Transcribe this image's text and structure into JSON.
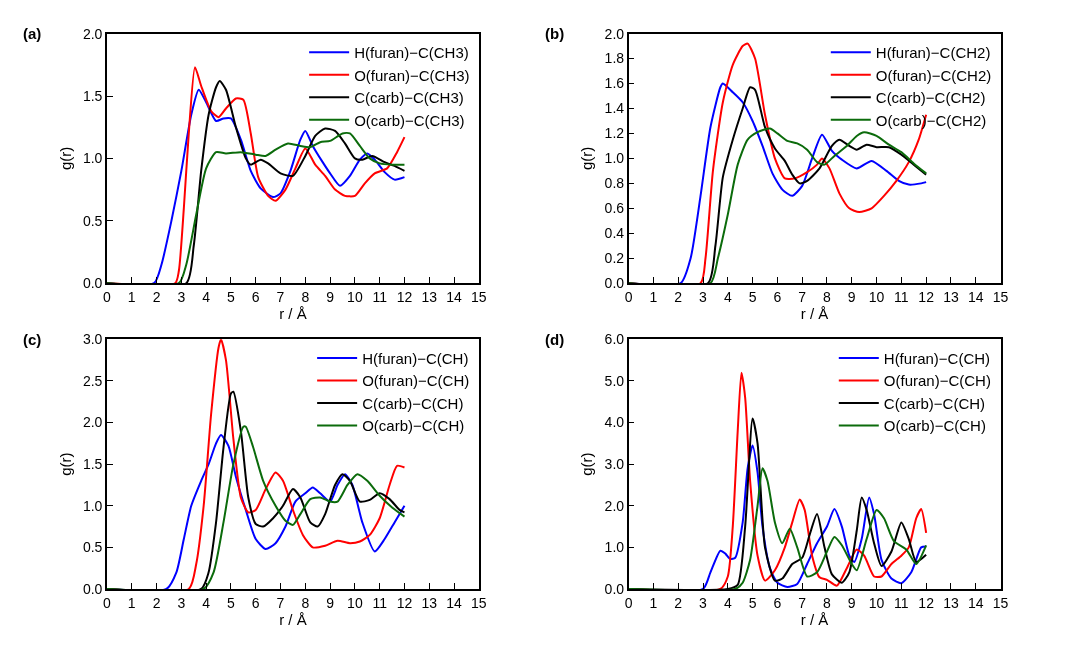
{
  "chart_data": [
    {
      "type": "line",
      "title": "(a)",
      "xlabel": "r / Å",
      "ylabel": "g(r)",
      "xlim": [
        0,
        15
      ],
      "xticks": [
        0,
        1,
        2,
        3,
        4,
        5,
        6,
        7,
        8,
        9,
        10,
        11,
        12,
        13,
        14,
        15
      ],
      "ylim": [
        0,
        2
      ],
      "yticks": [
        {
          "value": 0,
          "label": "0.0"
        },
        {
          "value": 0.5,
          "label": "0.5"
        },
        {
          "value": 1,
          "label": "1.0"
        },
        {
          "value": 1.5,
          "label": "1.5"
        },
        {
          "value": 2,
          "label": "2.0"
        }
      ],
      "legend": "top right",
      "series": [
        {
          "name": "H(furan)−C(CH3)",
          "color": "#0000ff",
          "x": [
            0,
            1.9,
            2.2,
            2.6,
            3.0,
            3.4,
            3.7,
            4.0,
            4.4,
            4.7,
            5.0,
            5.4,
            5.8,
            6.2,
            6.7,
            7.0,
            7.4,
            7.8,
            8.0,
            8.3,
            8.7,
            9.0,
            9.4,
            9.8,
            10.2,
            10.5,
            10.8,
            11.2,
            11.6,
            12.0
          ],
          "values": [
            0,
            0,
            0.15,
            0.5,
            0.9,
            1.35,
            1.55,
            1.45,
            1.3,
            1.32,
            1.32,
            1.15,
            0.9,
            0.76,
            0.69,
            0.72,
            0.9,
            1.15,
            1.22,
            1.1,
            0.97,
            0.88,
            0.78,
            0.86,
            0.99,
            1.04,
            0.99,
            0.89,
            0.83,
            0.85
          ]
        },
        {
          "name": "O(furan)−C(CH3)",
          "color": "#ff0000",
          "x": [
            0,
            2.75,
            2.9,
            3.1,
            3.3,
            3.55,
            3.8,
            4.2,
            4.5,
            4.8,
            5.2,
            5.5,
            5.8,
            6.1,
            6.5,
            6.8,
            7.2,
            7.6,
            8.0,
            8.4,
            8.8,
            9.2,
            9.6,
            10.0,
            10.4,
            10.8,
            11.3,
            11.7,
            12.0
          ],
          "values": [
            0,
            0,
            0.1,
            0.6,
            1.2,
            1.73,
            1.58,
            1.38,
            1.33,
            1.4,
            1.48,
            1.47,
            1.2,
            0.85,
            0.7,
            0.66,
            0.75,
            0.92,
            1.08,
            0.95,
            0.86,
            0.75,
            0.7,
            0.7,
            0.8,
            0.88,
            0.92,
            1.05,
            1.17
          ]
        },
        {
          "name": "C(carb)−C(CH3)",
          "color": "#000000",
          "x": [
            0,
            3.2,
            3.5,
            3.8,
            4.1,
            4.4,
            4.55,
            4.8,
            5.2,
            5.6,
            5.8,
            6.2,
            6.5,
            7.0,
            7.5,
            8.0,
            8.4,
            8.8,
            9.2,
            9.6,
            10.0,
            10.3,
            10.7,
            11.2,
            11.6,
            12.0
          ],
          "values": [
            0,
            0,
            0.3,
            0.9,
            1.35,
            1.57,
            1.62,
            1.55,
            1.25,
            1.0,
            0.95,
            0.99,
            0.96,
            0.88,
            0.86,
            1.02,
            1.18,
            1.24,
            1.22,
            1.12,
            1.0,
            0.99,
            1.02,
            0.97,
            0.94,
            0.9
          ]
        },
        {
          "name": "O(carb)−C(CH3)",
          "color": "#0b6b0b",
          "x": [
            0,
            2.9,
            3.2,
            3.6,
            4.0,
            4.4,
            4.8,
            5.4,
            6.0,
            6.4,
            6.8,
            7.3,
            7.8,
            8.2,
            8.6,
            9.0,
            9.5,
            9.8,
            10.2,
            10.6,
            11.0,
            11.5,
            12.0
          ],
          "values": [
            0,
            0,
            0.15,
            0.55,
            0.92,
            1.05,
            1.04,
            1.05,
            1.03,
            1.02,
            1.07,
            1.12,
            1.1,
            1.09,
            1.13,
            1.14,
            1.2,
            1.2,
            1.1,
            1.0,
            0.96,
            0.95,
            0.95
          ]
        }
      ]
    },
    {
      "type": "line",
      "title": "(b)",
      "xlabel": "r / Å",
      "ylabel": "g(r)",
      "xlim": [
        0,
        15
      ],
      "xticks": [
        0,
        1,
        2,
        3,
        4,
        5,
        6,
        7,
        8,
        9,
        10,
        11,
        12,
        13,
        14,
        15
      ],
      "ylim": [
        0,
        2
      ],
      "yticks": [
        {
          "value": 0,
          "label": "0.0"
        },
        {
          "value": 0.2,
          "label": "0.2"
        },
        {
          "value": 0.4,
          "label": "0.4"
        },
        {
          "value": 0.6,
          "label": "0.6"
        },
        {
          "value": 0.8,
          "label": "0.8"
        },
        {
          "value": 1,
          "label": "1.0"
        },
        {
          "value": 1.2,
          "label": "1.2"
        },
        {
          "value": 1.4,
          "label": "1.4"
        },
        {
          "value": 1.6,
          "label": "1.6"
        },
        {
          "value": 1.8,
          "label": "1.8"
        },
        {
          "value": 2,
          "label": "2.0"
        }
      ],
      "legend": "top right",
      "series": [
        {
          "name": "H(furan)−C(CH2)",
          "color": "#0000ff",
          "x": [
            0,
            2.1,
            2.5,
            2.9,
            3.3,
            3.7,
            3.8,
            4.2,
            4.6,
            5.0,
            5.4,
            5.8,
            6.2,
            6.6,
            7.0,
            7.4,
            7.8,
            8.2,
            8.6,
            9.2,
            9.8,
            10.4,
            10.9,
            11.3,
            11.8,
            12.0
          ],
          "values": [
            0,
            0,
            0.2,
            0.7,
            1.25,
            1.57,
            1.6,
            1.53,
            1.45,
            1.3,
            1.1,
            0.88,
            0.75,
            0.7,
            0.78,
            1.0,
            1.19,
            1.06,
            0.99,
            0.92,
            0.98,
            0.9,
            0.82,
            0.79,
            0.8,
            0.81
          ]
        },
        {
          "name": "O(furan)−C(CH2)",
          "color": "#ff0000",
          "x": [
            0,
            2.9,
            3.1,
            3.4,
            3.8,
            4.2,
            4.6,
            4.8,
            5.1,
            5.5,
            5.9,
            6.3,
            6.7,
            7.2,
            7.6,
            7.8,
            8.1,
            8.5,
            8.9,
            9.3,
            9.8,
            10.3,
            10.8,
            11.3,
            11.7,
            12.0
          ],
          "values": [
            0,
            0,
            0.2,
            0.9,
            1.45,
            1.75,
            1.9,
            1.92,
            1.8,
            1.35,
            1.0,
            0.84,
            0.84,
            0.89,
            0.95,
            1.0,
            0.92,
            0.72,
            0.6,
            0.57,
            0.6,
            0.7,
            0.82,
            0.97,
            1.15,
            1.35
          ]
        },
        {
          "name": "C(carb)−C(CH2)",
          "color": "#000000",
          "x": [
            0,
            3.2,
            3.5,
            3.8,
            4.2,
            4.6,
            4.9,
            5.1,
            5.5,
            5.9,
            6.3,
            6.6,
            6.9,
            7.2,
            7.7,
            8.2,
            8.5,
            8.9,
            9.2,
            9.6,
            10.0,
            10.5,
            11.0,
            11.5,
            12.0
          ],
          "values": [
            0,
            0,
            0.3,
            0.85,
            1.15,
            1.4,
            1.57,
            1.55,
            1.25,
            1.08,
            0.98,
            0.87,
            0.8,
            0.82,
            0.92,
            1.1,
            1.15,
            1.1,
            1.07,
            1.11,
            1.09,
            1.09,
            1.03,
            0.95,
            0.87
          ]
        },
        {
          "name": "O(carb)−C(CH2)",
          "color": "#0b6b0b",
          "x": [
            0,
            3.3,
            3.6,
            4.0,
            4.4,
            4.8,
            5.2,
            5.7,
            6.0,
            6.4,
            6.8,
            7.2,
            7.6,
            7.9,
            8.3,
            8.8,
            9.2,
            9.5,
            10.0,
            10.5,
            11.0,
            11.5,
            12.0
          ],
          "values": [
            0,
            0,
            0.2,
            0.55,
            0.95,
            1.15,
            1.21,
            1.24,
            1.2,
            1.14,
            1.12,
            1.07,
            0.97,
            0.95,
            1.02,
            1.1,
            1.18,
            1.21,
            1.18,
            1.11,
            1.05,
            0.96,
            0.88
          ]
        }
      ]
    },
    {
      "type": "line",
      "title": "(c)",
      "xlabel": "r / Å",
      "ylabel": "g(r)",
      "xlim": [
        0,
        15
      ],
      "xticks": [
        0,
        1,
        2,
        3,
        4,
        5,
        6,
        7,
        8,
        9,
        10,
        11,
        12,
        13,
        14,
        15
      ],
      "ylim": [
        0,
        3
      ],
      "yticks": [
        {
          "value": 0,
          "label": "0.0"
        },
        {
          "value": 0.5,
          "label": "0.5"
        },
        {
          "value": 1,
          "label": "1.0"
        },
        {
          "value": 1.5,
          "label": "1.5"
        },
        {
          "value": 2,
          "label": "2.0"
        },
        {
          "value": 2.5,
          "label": "2.5"
        },
        {
          "value": 3,
          "label": "3.0"
        }
      ],
      "legend": "top right",
      "series": [
        {
          "name": "H(furan)−C(CH)",
          "color": "#0000ff",
          "x": [
            0,
            2.4,
            2.8,
            3.1,
            3.4,
            3.8,
            4.1,
            4.4,
            4.6,
            4.9,
            5.2,
            5.6,
            6.0,
            6.4,
            6.8,
            7.2,
            7.6,
            8.0,
            8.3,
            8.6,
            9.0,
            9.3,
            9.6,
            9.9,
            10.3,
            10.8,
            11.2,
            11.6,
            12.0
          ],
          "values": [
            0,
            0,
            0.2,
            0.6,
            1.0,
            1.3,
            1.5,
            1.75,
            1.85,
            1.72,
            1.35,
            0.95,
            0.6,
            0.48,
            0.55,
            0.75,
            1.05,
            1.15,
            1.22,
            1.15,
            1.05,
            1.25,
            1.38,
            1.25,
            0.8,
            0.45,
            0.6,
            0.8,
            1.0
          ]
        },
        {
          "name": "O(furan)−C(CH)",
          "color": "#ff0000",
          "x": [
            0,
            3.3,
            3.6,
            3.9,
            4.2,
            4.5,
            4.6,
            4.8,
            5.1,
            5.4,
            5.7,
            6.0,
            6.4,
            6.8,
            7.1,
            7.5,
            7.9,
            8.3,
            8.8,
            9.3,
            9.8,
            10.2,
            10.6,
            11.0,
            11.4,
            11.7,
            12.0
          ],
          "values": [
            0,
            0,
            0.3,
            1.0,
            2.1,
            2.9,
            3.0,
            2.75,
            1.8,
            1.1,
            0.92,
            0.95,
            1.2,
            1.4,
            1.3,
            0.95,
            0.65,
            0.5,
            0.52,
            0.58,
            0.55,
            0.57,
            0.65,
            0.85,
            1.25,
            1.48,
            1.46
          ]
        },
        {
          "name": "C(carb)−C(CH)",
          "color": "#000000",
          "x": [
            0,
            3.8,
            4.1,
            4.4,
            4.7,
            5.0,
            5.1,
            5.4,
            5.7,
            6.0,
            6.3,
            6.7,
            7.1,
            7.5,
            7.8,
            8.2,
            8.5,
            8.8,
            9.2,
            9.5,
            9.8,
            10.2,
            10.6,
            11.0,
            11.4,
            11.8,
            12.0
          ],
          "values": [
            0,
            0,
            0.2,
            0.8,
            1.7,
            2.35,
            2.37,
            1.9,
            1.1,
            0.78,
            0.75,
            0.85,
            1.0,
            1.2,
            1.1,
            0.8,
            0.75,
            0.9,
            1.25,
            1.38,
            1.3,
            1.05,
            1.07,
            1.15,
            1.08,
            0.95,
            0.92
          ]
        },
        {
          "name": "O(carb)−C(CH)",
          "color": "#0b6b0b",
          "x": [
            0,
            3.9,
            4.3,
            4.7,
            5.1,
            5.5,
            5.6,
            5.9,
            6.3,
            6.8,
            7.2,
            7.5,
            7.8,
            8.2,
            8.6,
            9.0,
            9.3,
            9.7,
            10.1,
            10.5,
            11.0,
            11.5,
            12.0
          ],
          "values": [
            0,
            0,
            0.2,
            0.8,
            1.5,
            1.95,
            1.95,
            1.7,
            1.3,
            1.0,
            0.82,
            0.77,
            0.9,
            1.08,
            1.1,
            1.05,
            1.05,
            1.25,
            1.38,
            1.3,
            1.12,
            0.98,
            0.87
          ]
        }
      ]
    },
    {
      "type": "line",
      "title": "(d)",
      "xlabel": "r / Å",
      "ylabel": "g(r)",
      "xlim": [
        0,
        15
      ],
      "xticks": [
        0,
        1,
        2,
        3,
        4,
        5,
        6,
        7,
        8,
        9,
        10,
        11,
        12,
        13,
        14,
        15
      ],
      "ylim": [
        0,
        6
      ],
      "yticks": [
        {
          "value": 0,
          "label": "0.0"
        },
        {
          "value": 1,
          "label": "1.0"
        },
        {
          "value": 2,
          "label": "2.0"
        },
        {
          "value": 3,
          "label": "3.0"
        },
        {
          "value": 4,
          "label": "4.0"
        },
        {
          "value": 5,
          "label": "5.0"
        },
        {
          "value": 6,
          "label": "6.0"
        }
      ],
      "legend": "top right",
      "series": [
        {
          "name": "H(furan)−C(CH)",
          "color": "#0000ff",
          "x": [
            0,
            3.0,
            3.3,
            3.7,
            3.9,
            4.1,
            4.3,
            4.6,
            4.8,
            5.0,
            5.2,
            5.4,
            5.7,
            6.0,
            6.4,
            6.8,
            7.2,
            7.6,
            8.0,
            8.3,
            8.6,
            8.9,
            9.1,
            9.4,
            9.7,
            9.9,
            10.2,
            10.6,
            11.0,
            11.4,
            11.8,
            12.0
          ],
          "values": [
            0,
            0,
            0.4,
            0.92,
            0.85,
            0.72,
            0.75,
            1.6,
            2.9,
            3.45,
            2.8,
            1.5,
            0.5,
            0.15,
            0.05,
            0.12,
            0.6,
            1.1,
            1.5,
            1.92,
            1.5,
            0.8,
            0.65,
            1.2,
            2.2,
            1.8,
            0.7,
            0.25,
            0.14,
            0.4,
            1.0,
            1.02
          ]
        },
        {
          "name": "O(furan)−C(CH)",
          "color": "#ff0000",
          "x": [
            0,
            3.7,
            4.0,
            4.2,
            4.4,
            4.55,
            4.7,
            4.9,
            5.2,
            5.5,
            5.9,
            6.3,
            6.6,
            6.9,
            7.1,
            7.4,
            7.7,
            8.0,
            8.4,
            8.8,
            9.2,
            9.5,
            9.9,
            10.2,
            10.6,
            11.0,
            11.3,
            11.6,
            11.8,
            12.0
          ],
          "values": [
            0,
            0,
            0.3,
            1.5,
            3.8,
            5.2,
            4.6,
            2.6,
            0.8,
            0.2,
            0.45,
            1.0,
            1.6,
            2.15,
            1.9,
            0.8,
            0.28,
            0.22,
            0.08,
            0.5,
            0.95,
            0.8,
            0.3,
            0.3,
            0.6,
            0.8,
            1.0,
            1.7,
            1.92,
            1.35
          ]
        },
        {
          "name": "C(carb)−C(CH)",
          "color": "#000000",
          "x": [
            0,
            4.0,
            4.4,
            4.7,
            5.0,
            5.2,
            5.5,
            5.9,
            6.2,
            6.6,
            7.0,
            7.3,
            7.6,
            7.9,
            8.2,
            8.6,
            8.9,
            9.2,
            9.4,
            9.6,
            9.9,
            10.2,
            10.6,
            11.0,
            11.3,
            11.6,
            12.0
          ],
          "values": [
            0,
            0,
            0.1,
            1.5,
            4.1,
            3.5,
            1.0,
            0.2,
            0.25,
            0.6,
            0.75,
            1.3,
            1.8,
            1.0,
            0.35,
            0.15,
            0.4,
            1.4,
            2.2,
            1.9,
            1.1,
            0.55,
            0.9,
            1.6,
            1.2,
            0.65,
            0.82
          ]
        },
        {
          "name": "O(carb)−C(CH)",
          "color": "#0b6b0b",
          "x": [
            0,
            4.3,
            4.6,
            4.9,
            5.2,
            5.4,
            5.6,
            5.9,
            6.2,
            6.5,
            6.8,
            7.2,
            7.6,
            8.0,
            8.3,
            8.6,
            9.0,
            9.2,
            9.6,
            10.0,
            10.3,
            10.7,
            11.2,
            11.6,
            12.0
          ],
          "values": [
            0,
            0,
            0.15,
            0.7,
            2.0,
            2.9,
            2.6,
            1.6,
            1.1,
            1.45,
            1.0,
            0.3,
            0.4,
            0.9,
            1.25,
            1.05,
            0.6,
            0.45,
            1.2,
            1.9,
            1.7,
            1.15,
            0.95,
            0.6,
            1.05
          ]
        }
      ]
    }
  ]
}
